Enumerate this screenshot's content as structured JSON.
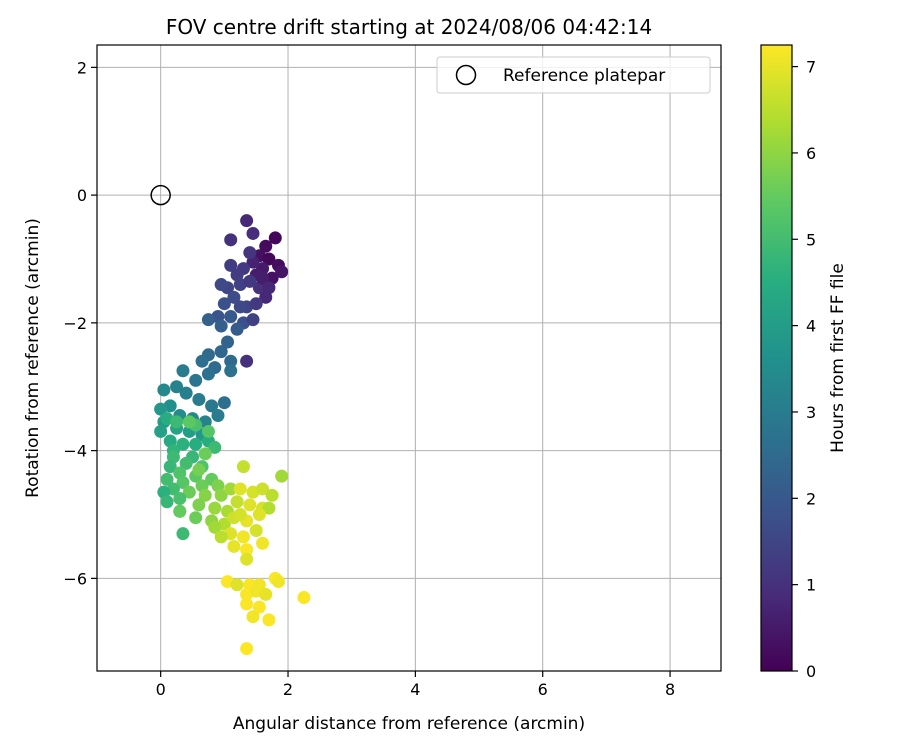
{
  "chart_data": {
    "type": "scatter",
    "title": "FOV centre drift starting at 2024/08/06 04:42:14",
    "xlabel": "Angular distance from reference (arcmin)",
    "ylabel": "Rotation from reference (arcmin)",
    "xlim": [
      -1.0,
      8.8
    ],
    "ylim": [
      -7.45,
      2.35
    ],
    "xticks": [
      "0",
      "2",
      "4",
      "6",
      "8"
    ],
    "yticks": [
      "2",
      "0",
      "−2",
      "−4",
      "−6"
    ],
    "grid": true,
    "legend": {
      "position": "top-right",
      "entries": [
        "Reference platepar"
      ]
    },
    "reference_point": {
      "name": "Reference platepar",
      "x": 0,
      "y": 0,
      "marker": "open-circle"
    },
    "colorbar": {
      "label": "Hours from first FF file",
      "colormap": "viridis",
      "range": [
        0,
        7.25
      ],
      "ticks": [
        "0",
        "1",
        "2",
        "3",
        "4",
        "5",
        "6",
        "7"
      ]
    },
    "points": [
      [
        1.8,
        -0.67,
        0.1
      ],
      [
        1.65,
        -0.8,
        0.2
      ],
      [
        1.55,
        -0.95,
        0.3
      ],
      [
        1.7,
        -1.0,
        0.15
      ],
      [
        1.85,
        -1.1,
        0.25
      ],
      [
        1.9,
        -1.2,
        0.4
      ],
      [
        1.6,
        -1.15,
        0.5
      ],
      [
        1.75,
        -1.3,
        0.35
      ],
      [
        1.5,
        -1.25,
        0.6
      ],
      [
        1.45,
        -1.05,
        0.7
      ],
      [
        1.35,
        -0.4,
        0.8
      ],
      [
        1.45,
        -0.6,
        0.9
      ],
      [
        1.1,
        -0.7,
        1.0
      ],
      [
        1.4,
        -0.9,
        1.1
      ],
      [
        1.3,
        -1.15,
        1.2
      ],
      [
        1.2,
        -1.25,
        1.3
      ],
      [
        1.55,
        -1.45,
        1.0
      ],
      [
        1.65,
        -1.6,
        0.8
      ],
      [
        1.25,
        -1.4,
        1.4
      ],
      [
        1.1,
        -1.1,
        1.3
      ],
      [
        1.05,
        -1.45,
        1.5
      ],
      [
        0.95,
        -1.4,
        1.6
      ],
      [
        1.15,
        -1.6,
        1.7
      ],
      [
        1.35,
        -1.75,
        1.5
      ],
      [
        1.5,
        -1.7,
        1.2
      ],
      [
        1.0,
        -1.7,
        1.8
      ],
      [
        0.9,
        -1.9,
        1.9
      ],
      [
        1.1,
        -1.9,
        2.0
      ],
      [
        1.3,
        -2.0,
        1.8
      ],
      [
        1.2,
        -2.1,
        2.1
      ],
      [
        0.75,
        -1.95,
        2.2
      ],
      [
        0.95,
        -2.05,
        2.2
      ],
      [
        1.35,
        -2.6,
        1.0
      ],
      [
        1.05,
        -2.3,
        2.3
      ],
      [
        0.95,
        -2.45,
        2.4
      ],
      [
        1.1,
        -2.6,
        2.5
      ],
      [
        0.75,
        -2.5,
        2.5
      ],
      [
        0.65,
        -2.6,
        2.6
      ],
      [
        0.85,
        -2.7,
        2.5
      ],
      [
        1.1,
        -2.75,
        2.7
      ],
      [
        0.55,
        -2.9,
        2.8
      ],
      [
        0.75,
        -2.8,
        2.7
      ],
      [
        0.35,
        -2.75,
        3.0
      ],
      [
        0.25,
        -3.0,
        3.2
      ],
      [
        0.05,
        -3.05,
        3.4
      ],
      [
        0.4,
        -3.1,
        3.1
      ],
      [
        0.6,
        -3.2,
        3.0
      ],
      [
        0.8,
        -3.3,
        2.9
      ],
      [
        1.0,
        -3.25,
        2.6
      ],
      [
        0.15,
        -3.3,
        3.6
      ],
      [
        0.0,
        -3.35,
        3.8
      ],
      [
        0.3,
        -3.45,
        3.5
      ],
      [
        0.5,
        -3.5,
        3.4
      ],
      [
        0.7,
        -3.55,
        3.2
      ],
      [
        0.9,
        -3.45,
        3.0
      ],
      [
        0.05,
        -3.55,
        4.0
      ],
      [
        0.25,
        -3.65,
        4.2
      ],
      [
        0.45,
        -3.7,
        4.0
      ],
      [
        0.65,
        -3.75,
        3.8
      ],
      [
        0.15,
        -3.85,
        4.4
      ],
      [
        0.0,
        -3.7,
        4.1
      ],
      [
        0.35,
        -3.9,
        4.6
      ],
      [
        0.55,
        -3.9,
        4.5
      ],
      [
        0.75,
        -3.85,
        4.5
      ],
      [
        0.2,
        -4.0,
        4.7
      ],
      [
        0.5,
        -4.1,
        4.8
      ],
      [
        0.85,
        -3.95,
        4.9
      ],
      [
        0.1,
        -3.5,
        4.5
      ],
      [
        0.25,
        -3.55,
        4.9
      ],
      [
        0.55,
        -3.6,
        5.1
      ],
      [
        0.75,
        -3.7,
        5.3
      ],
      [
        0.2,
        -4.1,
        4.9
      ],
      [
        0.4,
        -4.2,
        5.0
      ],
      [
        0.65,
        -4.25,
        5.2
      ],
      [
        0.15,
        -4.25,
        4.8
      ],
      [
        0.3,
        -4.35,
        5.2
      ],
      [
        0.55,
        -4.4,
        5.4
      ],
      [
        0.8,
        -4.45,
        5.5
      ],
      [
        0.1,
        -4.45,
        5.0
      ],
      [
        0.35,
        -4.5,
        5.3
      ],
      [
        0.65,
        -4.55,
        5.6
      ],
      [
        0.9,
        -4.55,
        5.8
      ],
      [
        0.2,
        -4.6,
        5.0
      ],
      [
        0.45,
        -4.65,
        5.6
      ],
      [
        0.7,
        -4.7,
        5.9
      ],
      [
        0.95,
        -4.7,
        6.0
      ],
      [
        1.1,
        -4.6,
        6.2
      ],
      [
        0.05,
        -4.65,
        4.6
      ],
      [
        0.3,
        -4.75,
        5.1
      ],
      [
        0.6,
        -4.85,
        5.8
      ],
      [
        0.85,
        -4.9,
        6.1
      ],
      [
        1.05,
        -4.95,
        6.3
      ],
      [
        0.1,
        -4.8,
        4.8
      ],
      [
        0.3,
        -4.95,
        5.3
      ],
      [
        0.55,
        -5.05,
        5.6
      ],
      [
        0.8,
        -5.1,
        6.0
      ],
      [
        1.0,
        -5.15,
        6.4
      ],
      [
        0.35,
        -5.3,
        4.9
      ],
      [
        0.85,
        -5.2,
        6.2
      ],
      [
        1.3,
        -4.25,
        6.6
      ],
      [
        1.25,
        -4.6,
        6.9
      ],
      [
        1.45,
        -4.65,
        6.8
      ],
      [
        1.6,
        -4.6,
        6.7
      ],
      [
        1.75,
        -4.7,
        6.5
      ],
      [
        1.9,
        -4.4,
        6.2
      ],
      [
        1.2,
        -4.8,
        6.6
      ],
      [
        1.4,
        -4.85,
        6.9
      ],
      [
        1.6,
        -4.9,
        6.8
      ],
      [
        1.7,
        -4.9,
        6.4
      ],
      [
        1.15,
        -5.05,
        6.7
      ],
      [
        1.35,
        -5.1,
        7.0
      ],
      [
        1.55,
        -5.0,
        6.9
      ],
      [
        1.1,
        -5.3,
        6.9
      ],
      [
        1.3,
        -5.35,
        7.1
      ],
      [
        1.5,
        -5.25,
        6.8
      ],
      [
        1.15,
        -5.5,
        7.0
      ],
      [
        1.35,
        -5.55,
        7.2
      ],
      [
        1.6,
        -5.45,
        7.1
      ],
      [
        1.35,
        -5.7,
        6.9
      ],
      [
        1.05,
        -6.05,
        7.2
      ],
      [
        1.4,
        -6.1,
        7.2
      ],
      [
        1.55,
        -6.1,
        7.1
      ],
      [
        1.8,
        -6.0,
        7.2
      ],
      [
        1.85,
        -6.05,
        7.1
      ],
      [
        1.2,
        -6.1,
        6.9
      ],
      [
        1.35,
        -6.25,
        7.2
      ],
      [
        1.5,
        -6.2,
        7.1
      ],
      [
        1.65,
        -6.25,
        7.0
      ],
      [
        1.35,
        -6.4,
        7.2
      ],
      [
        1.55,
        -6.45,
        7.2
      ],
      [
        1.45,
        -6.6,
        7.1
      ],
      [
        1.7,
        -6.65,
        7.2
      ],
      [
        2.25,
        -6.3,
        7.2
      ],
      [
        1.35,
        -7.1,
        7.25
      ],
      [
        0.95,
        -5.35,
        6.5
      ],
      [
        1.25,
        -5.0,
        6.8
      ],
      [
        0.6,
        -4.3,
        5.7
      ],
      [
        0.45,
        -3.55,
        5.4
      ],
      [
        0.7,
        -4.05,
        5.6
      ],
      [
        0.3,
        -4.95,
        5.5
      ],
      [
        1.6,
        -1.3,
        0.6
      ],
      [
        1.4,
        -1.35,
        1.2
      ],
      [
        1.7,
        -1.45,
        0.8
      ],
      [
        1.25,
        -1.75,
        1.6
      ],
      [
        1.45,
        -1.95,
        1.4
      ]
    ]
  }
}
